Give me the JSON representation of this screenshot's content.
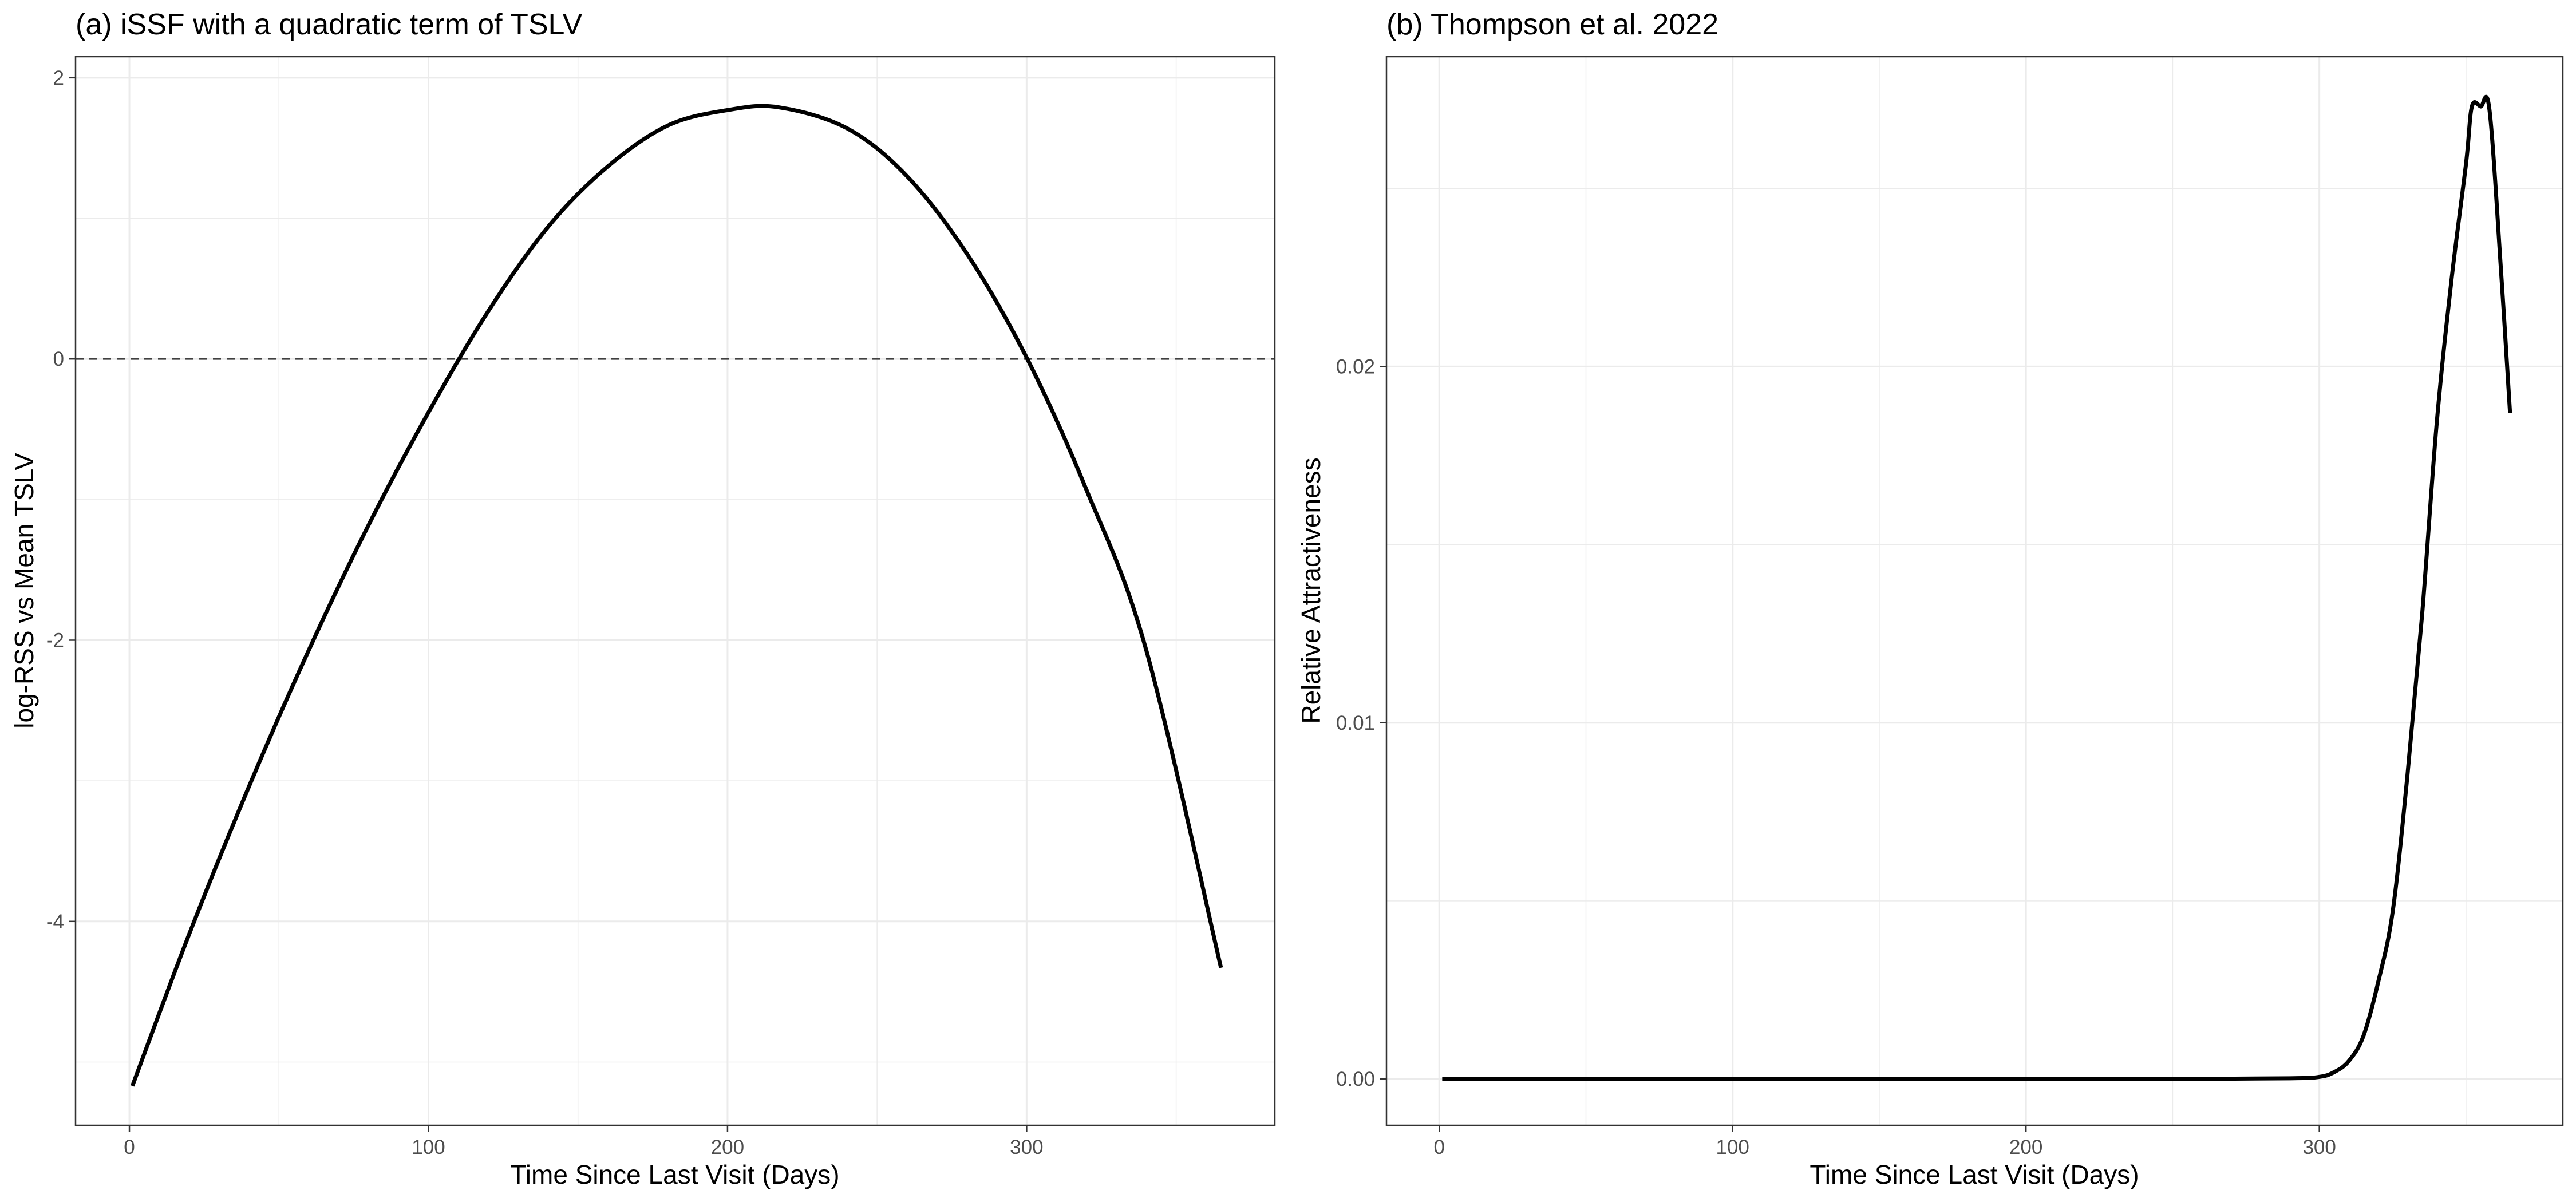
{
  "chart_data": [
    {
      "type": "line",
      "title": "(a) iSSF with a quadratic term of TSLV",
      "xlabel": "Time Since Last Visit (Days)",
      "ylabel": "log-RSS vs Mean TSLV",
      "xlim": [
        -18,
        383
      ],
      "ylim": [
        -5.45,
        2.15
      ],
      "x_ticks": [
        0,
        100,
        200,
        300
      ],
      "x_tick_labels": [
        "0",
        "100",
        "200",
        "300"
      ],
      "y_ticks": [
        -4,
        -2,
        0,
        2
      ],
      "y_tick_labels": [
        "-4",
        "-2",
        "0",
        "2"
      ],
      "grid": true,
      "reference_line": {
        "y": 0,
        "style": "dashed"
      },
      "colors": {
        "line": "#000000",
        "grid": "#ebebeb",
        "border": "#333333",
        "reference": "#404040"
      },
      "series": [
        {
          "x": [
            1,
            20,
            40,
            60,
            80,
            100,
            120,
            140,
            160,
            180,
            200,
            217,
            240,
            260,
            280,
            300,
            320,
            340,
            365
          ],
          "y": [
            -5.17,
            -4.09,
            -3.04,
            -2.07,
            -1.18,
            -0.38,
            0.34,
            0.94,
            1.37,
            1.66,
            1.77,
            1.79,
            1.64,
            1.3,
            0.75,
            0.01,
            -0.93,
            -2.07,
            -4.33
          ]
        }
      ]
    },
    {
      "type": "line",
      "title": "(b) Thompson et al. 2022",
      "xlabel": "Time Since Last Visit (Days)",
      "ylabel": "Relative Attractiveness",
      "xlim": [
        -18,
        383
      ],
      "ylim": [
        -0.0013,
        0.0287
      ],
      "x_ticks": [
        0,
        100,
        200,
        300
      ],
      "x_tick_labels": [
        "0",
        "100",
        "200",
        "300"
      ],
      "y_ticks": [
        0.0,
        0.01,
        0.02
      ],
      "y_tick_labels": [
        "0.00",
        "0.01",
        "0.02"
      ],
      "grid": true,
      "colors": {
        "line": "#000000",
        "grid": "#ebebeb",
        "border": "#333333"
      },
      "series": [
        {
          "x": [
            1,
            50,
            100,
            150,
            200,
            250,
            290,
            300,
            305,
            310,
            315,
            320,
            325,
            330,
            335,
            340,
            345,
            350,
            352,
            355,
            358,
            362,
            365
          ],
          "y": [
            0,
            0,
            0,
            0,
            0,
            0,
            2e-05,
            6e-05,
            0.00019,
            0.0005,
            0.0012,
            0.0027,
            0.0047,
            0.0085,
            0.013,
            0.0184,
            0.0224,
            0.0257,
            0.0273,
            0.0273,
            0.0272,
            0.0226,
            0.0187
          ]
        }
      ]
    }
  ]
}
